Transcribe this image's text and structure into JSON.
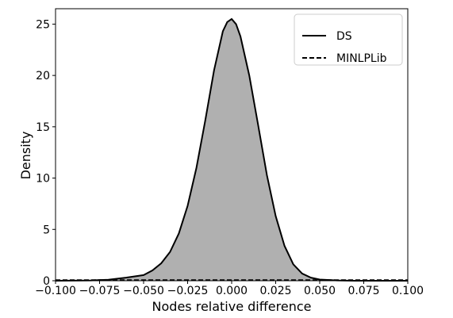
{
  "chart_data": {
    "type": "area",
    "title": "",
    "xlabel": "Nodes relative difference",
    "ylabel": "Density",
    "xlim": [
      -0.1,
      0.1
    ],
    "ylim": [
      0,
      26.5
    ],
    "xticks": [
      -0.1,
      -0.075,
      -0.05,
      -0.025,
      0.0,
      0.025,
      0.05,
      0.075,
      0.1
    ],
    "xtick_labels": [
      "−0.100",
      "−0.075",
      "−0.050",
      "−0.025",
      "0.000",
      "0.025",
      "0.050",
      "0.075",
      "0.100"
    ],
    "yticks": [
      0,
      5,
      10,
      15,
      20,
      25
    ],
    "ytick_labels": [
      "0",
      "5",
      "10",
      "15",
      "20",
      "25"
    ],
    "grid": false,
    "legend_position": "top-right",
    "colors": {
      "fill": "#b0b0b0",
      "line": "#000000"
    },
    "series": [
      {
        "name": "DS",
        "style": "solid",
        "filled": true,
        "x": [
          -0.1,
          -0.08,
          -0.07,
          -0.06,
          -0.05,
          -0.045,
          -0.04,
          -0.035,
          -0.03,
          -0.025,
          -0.02,
          -0.015,
          -0.01,
          -0.005,
          -0.0025,
          0.0,
          0.0025,
          0.005,
          0.01,
          0.015,
          0.02,
          0.025,
          0.03,
          0.035,
          0.04,
          0.045,
          0.05,
          0.06,
          0.07,
          0.08,
          0.1
        ],
        "y": [
          0.0,
          0.03,
          0.1,
          0.3,
          0.55,
          1.0,
          1.7,
          2.8,
          4.6,
          7.3,
          11.0,
          15.6,
          20.5,
          24.3,
          25.2,
          25.5,
          25.0,
          23.8,
          20.0,
          15.2,
          10.3,
          6.3,
          3.4,
          1.6,
          0.7,
          0.3,
          0.12,
          0.03,
          0.0,
          0.0,
          0.0
        ]
      },
      {
        "name": "MINLPLib",
        "style": "dashed",
        "filled": false,
        "x": [
          -0.1,
          0.1
        ],
        "y": [
          0,
          0
        ]
      }
    ]
  }
}
